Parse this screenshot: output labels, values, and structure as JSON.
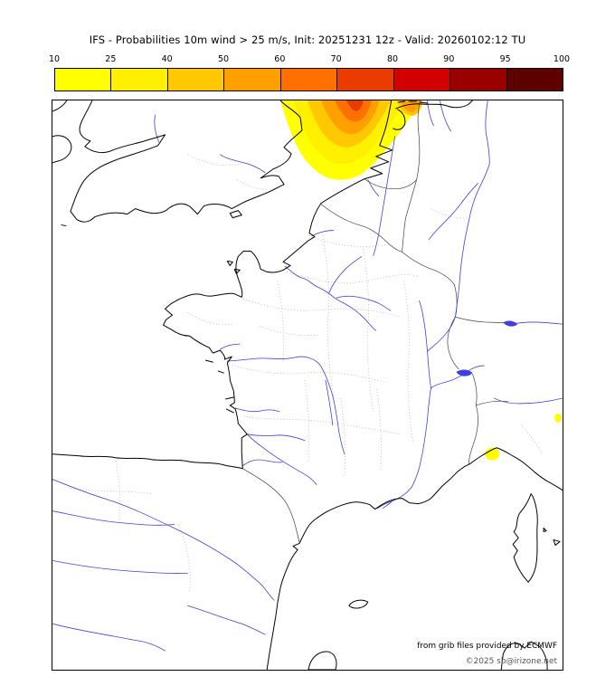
{
  "title": "IFS - Probabilities 10m wind > 25 m/s, Init: 20251231 12z - Valid: 20260102:12 TU",
  "colorbar": {
    "tick_labels": [
      "10",
      "25",
      "40",
      "50",
      "60",
      "70",
      "80",
      "90",
      "95",
      "100"
    ],
    "segment_colors": [
      "#ffff00",
      "#fff000",
      "#ffc800",
      "#ffa000",
      "#ff7000",
      "#eb3c00",
      "#d20000",
      "#9b0000",
      "#5f0000"
    ]
  },
  "map": {
    "coast_color": "#000000",
    "river_color": "#4040e0",
    "admin_border_color": "#b4b4b4",
    "country_border_color": "#404040",
    "credit_line1": "from grib files provided by ECMWF",
    "credit_line2": "©2025 sb@irizone.net",
    "credit_color1": "#000000",
    "credit_color2": "#555555"
  },
  "probability_shading": {
    "variable": "10m wind > 25 m/s",
    "regions": [
      {
        "location": "southern North Sea / Dutch-Belgian coast",
        "max_band": "60-70"
      },
      {
        "location": "Ligurian coast near the Italian Riviera",
        "max_band": "10-25"
      },
      {
        "location": "small spot near eastern map edge",
        "max_band": "10-25"
      }
    ]
  }
}
